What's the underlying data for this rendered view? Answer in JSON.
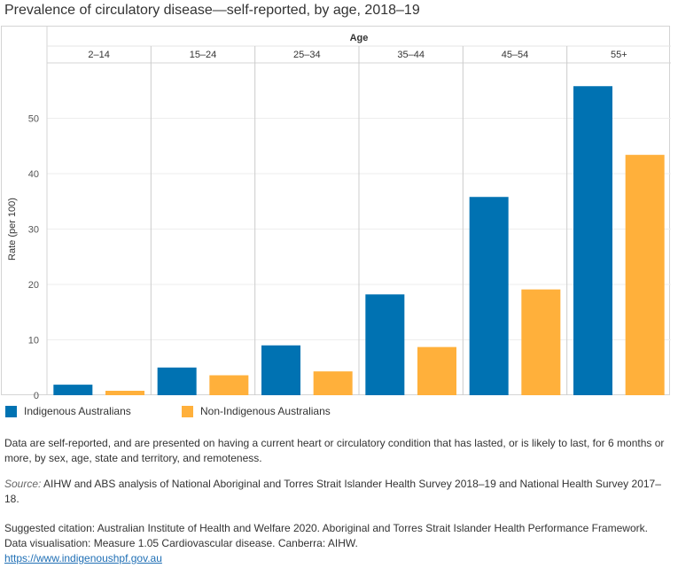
{
  "title": "Prevalence of circulatory disease—self-reported, by age, 2018–19",
  "chart_data": {
    "type": "bar",
    "xlabel": "Age",
    "ylabel": "Rate (per 100)",
    "categories": [
      "2–14",
      "15–24",
      "25–34",
      "35–44",
      "45–54",
      "55+"
    ],
    "series": [
      {
        "name": "Indigenous Australians",
        "color": "#0072b2",
        "values": [
          1.9,
          5.0,
          9.0,
          18.2,
          35.8,
          55.8
        ]
      },
      {
        "name": "Non-Indigenous Australians",
        "color": "#ffb03b",
        "values": [
          0.8,
          3.6,
          4.3,
          8.7,
          19.1,
          43.4
        ]
      }
    ],
    "yticks": [
      0,
      10,
      20,
      30,
      40,
      50
    ],
    "ylim": [
      0,
      60
    ],
    "grid": true,
    "legend": "bottom-left"
  },
  "notes": {
    "description": "Data are self-reported, and are presented on having a current heart or circulatory condition that has lasted, or is likely to last, for 6 months or more, by sex, age, state and territory, and remoteness.",
    "source_label": "Source:",
    "source_text": " AIHW and ABS analysis of National Aboriginal and Torres Strait Islander Health Survey 2018–19 and National Health Survey 2017–18.",
    "citation": "Suggested citation: Australian Institute of Health and Welfare 2020. Aboriginal and Torres Strait Islander Health Performance Framework. Data visualisation: Measure 1.05 Cardiovascular disease. Canberra: AIHW.",
    "link": "https://www.indigenoushpf.gov.au"
  }
}
